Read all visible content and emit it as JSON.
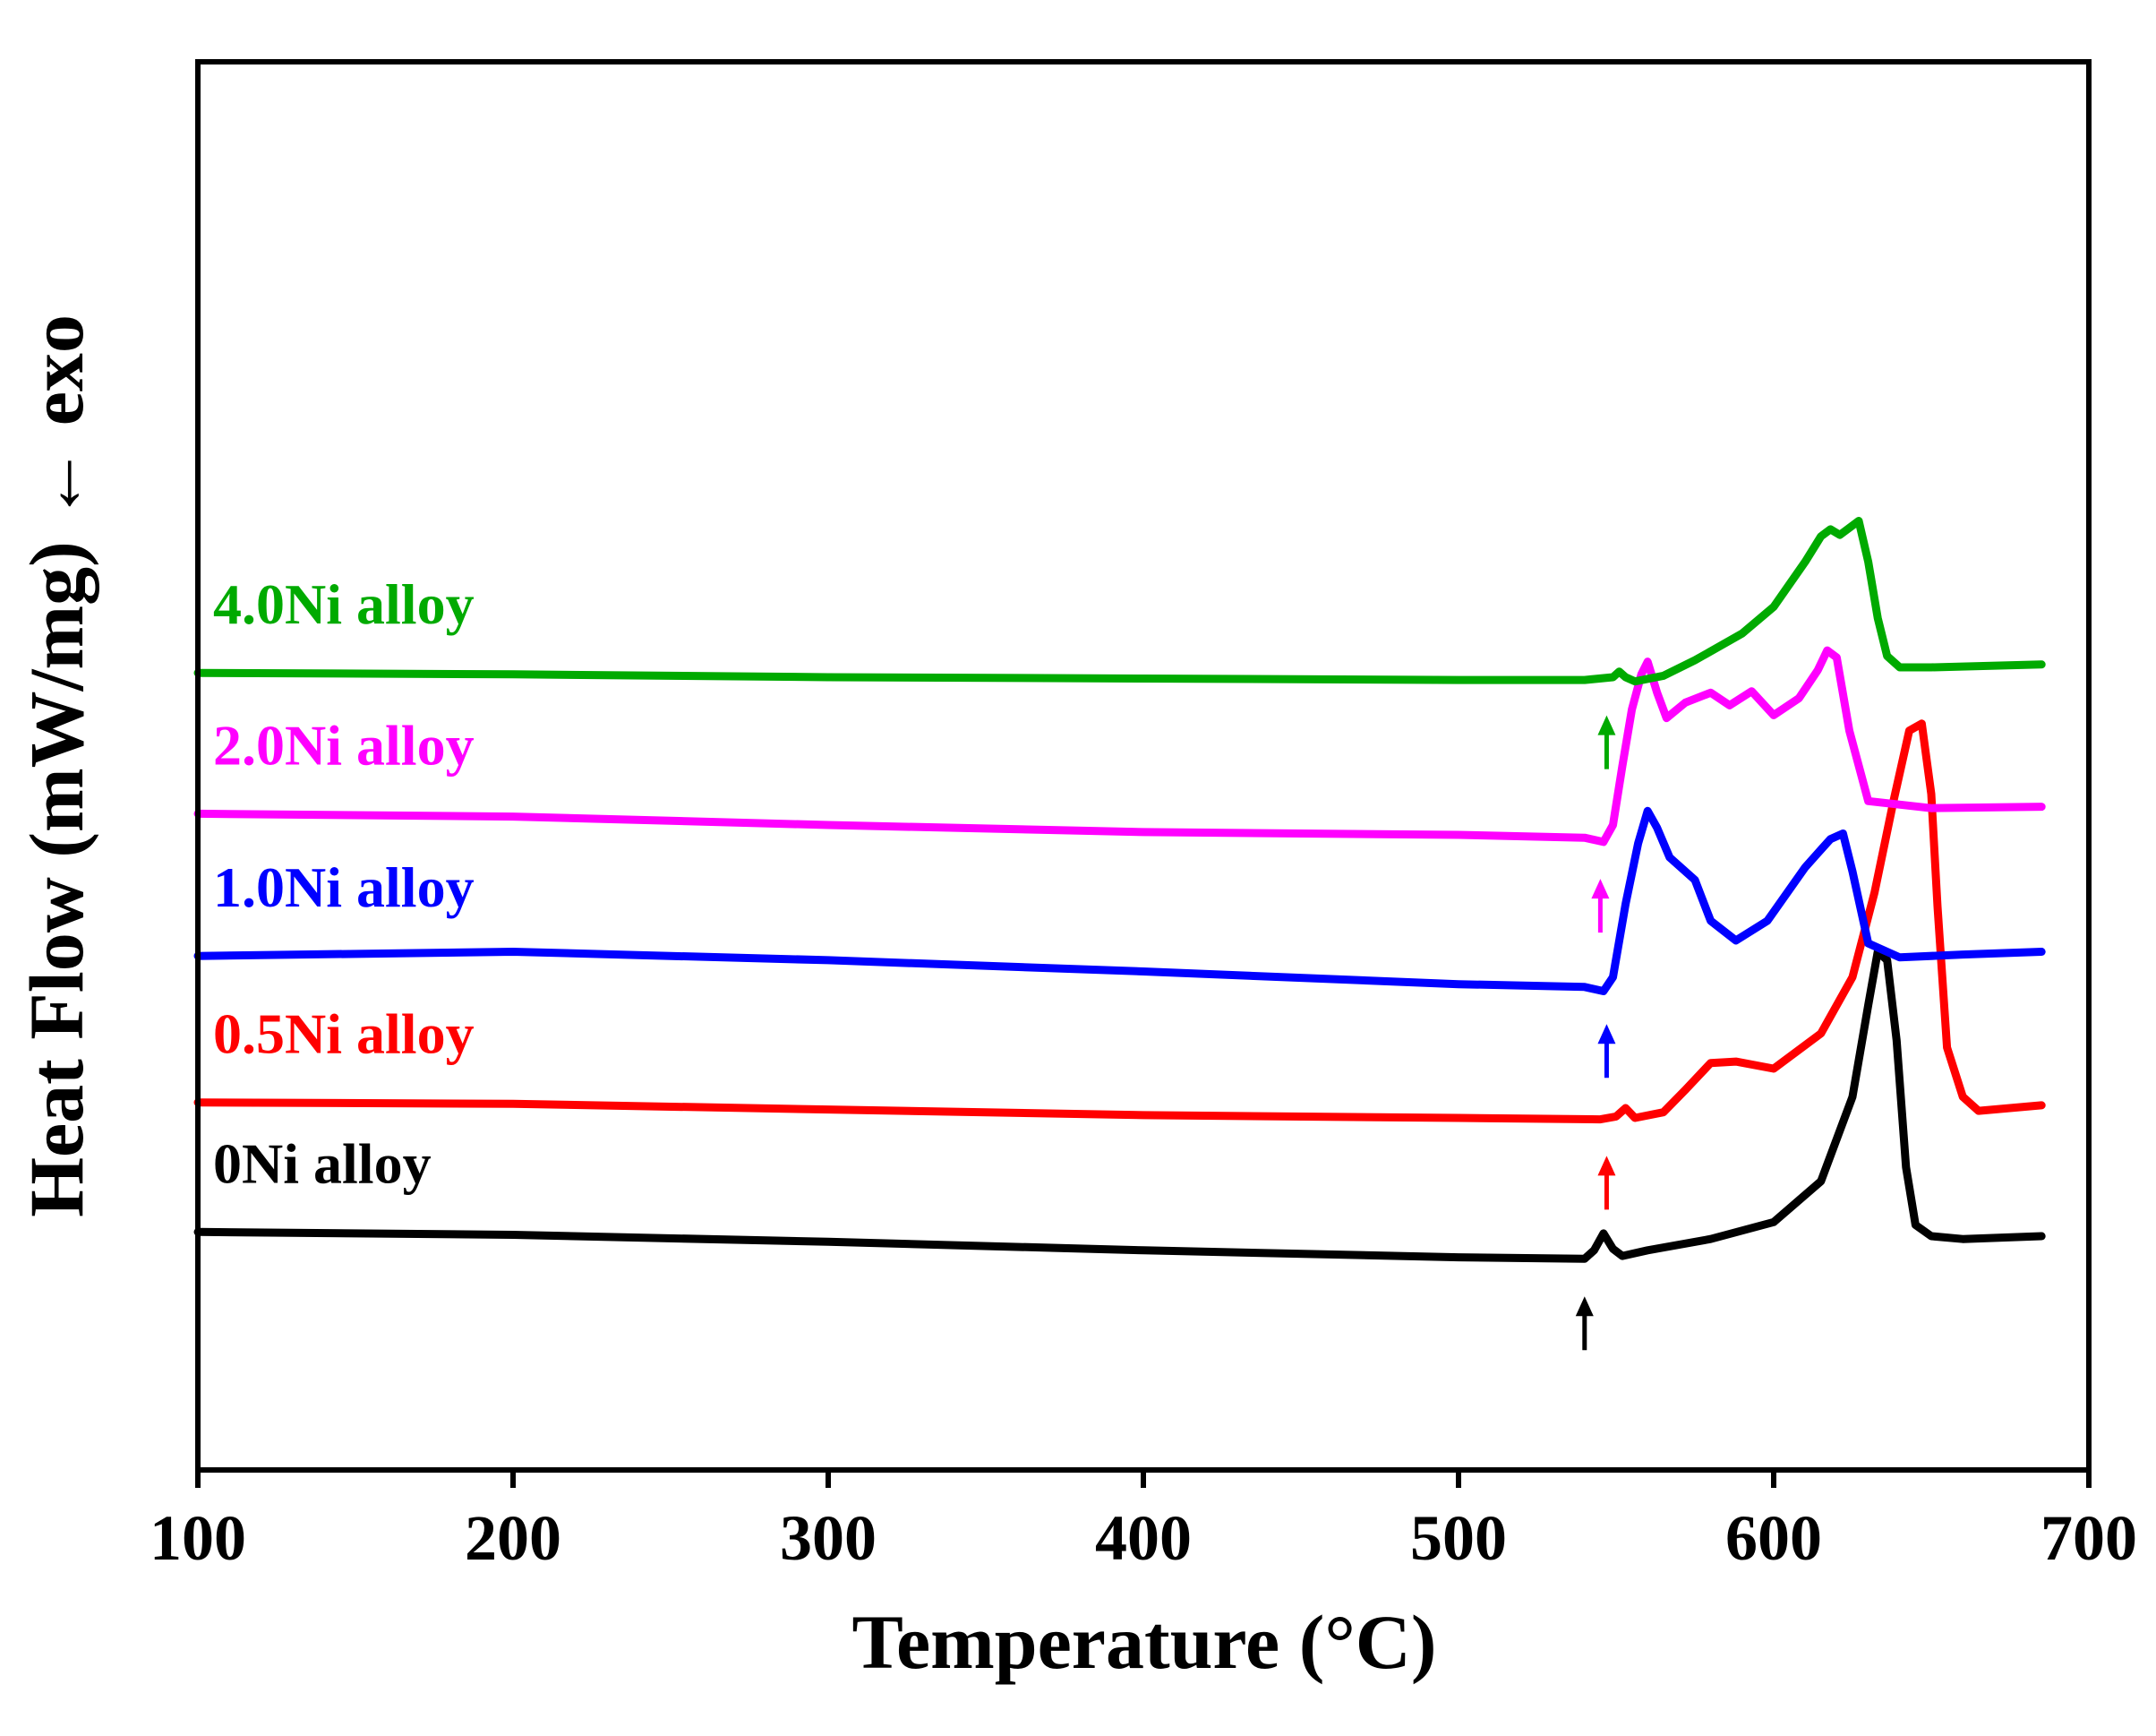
{
  "chart_data": {
    "type": "line",
    "title": "",
    "xlabel": "Temperature (°C)",
    "ylabel": "Heat Flow (mW/mg) ← exo",
    "xlim": [
      100,
      700
    ],
    "xticks": [
      "100",
      "200",
      "300",
      "400",
      "500",
      "600",
      "700"
    ],
    "ylim": [
      0,
      100
    ],
    "grid": false,
    "legend": "inline labels above each curve",
    "series": [
      {
        "name": "0Ni alloy",
        "color": "#000000",
        "onset_arrow_x": 540,
        "x": [
          100,
          200,
          300,
          400,
          500,
          540,
          543,
          546,
          549,
          552,
          560,
          580,
          600,
          615,
          625,
          630,
          633,
          636,
          639,
          642,
          645,
          650,
          660,
          685
        ],
        "y": [
          16.9,
          16.7,
          16.2,
          15.6,
          15.1,
          15.0,
          15.6,
          16.8,
          15.7,
          15.2,
          15.6,
          16.4,
          17.6,
          20.5,
          26.5,
          33,
          36.8,
          36.2,
          30.5,
          21.5,
          17.4,
          16.6,
          16.4,
          16.6
        ]
      },
      {
        "name": "0.5Ni alloy",
        "color": "#ff0000",
        "onset_arrow_x": 547,
        "x": [
          100,
          200,
          300,
          400,
          500,
          545,
          550,
          553,
          556,
          565,
          572,
          580,
          588,
          600,
          615,
          625,
          632,
          638,
          643,
          647,
          650,
          652,
          655,
          660,
          665,
          685
        ],
        "y": [
          26.1,
          26.0,
          25.6,
          25.2,
          25.0,
          24.9,
          25.1,
          25.7,
          25.0,
          25.4,
          27.0,
          28.9,
          29.0,
          28.5,
          31.0,
          35,
          41,
          47.5,
          52.5,
          53,
          48,
          40,
          30,
          26.5,
          25.5,
          25.9
        ]
      },
      {
        "name": "1.0Ni alloy",
        "color": "#0000ff",
        "onset_arrow_x": 547,
        "x": [
          100,
          200,
          300,
          400,
          500,
          540,
          546,
          549,
          553,
          557,
          560,
          563,
          567,
          575,
          580,
          588,
          598,
          610,
          618,
          622,
          625,
          630,
          640,
          660,
          685
        ],
        "y": [
          36.5,
          36.8,
          36.2,
          35.4,
          34.5,
          34.3,
          34.0,
          35.0,
          40.2,
          44.5,
          46.8,
          45.6,
          43.5,
          41.9,
          39.0,
          37.6,
          39.0,
          42.8,
          44.8,
          45.2,
          42.5,
          37.4,
          36.4,
          36.6,
          36.8
        ]
      },
      {
        "name": "2.0Ni alloy",
        "color": "#ff00ff",
        "onset_arrow_x": 545,
        "x": [
          100,
          200,
          300,
          400,
          500,
          540,
          546,
          549,
          552,
          555,
          558,
          560,
          563,
          566,
          572,
          580,
          586,
          593,
          600,
          608,
          614,
          617,
          620,
          624,
          630,
          650,
          685
        ],
        "y": [
          46.6,
          46.4,
          45.8,
          45.3,
          45.1,
          44.9,
          44.6,
          45.8,
          50.0,
          54.0,
          56.5,
          57.4,
          55.2,
          53.4,
          54.5,
          55.2,
          54.3,
          55.3,
          53.6,
          54.8,
          56.8,
          58.2,
          57.7,
          52.5,
          47.5,
          47.0,
          47.1
        ]
      },
      {
        "name": "4.0Ni alloy",
        "color": "#00aa00",
        "onset_arrow_x": 547,
        "x": [
          100,
          200,
          300,
          400,
          500,
          540,
          549,
          551,
          553,
          556,
          565,
          575,
          590,
          600,
          610,
          615,
          618,
          621,
          624,
          627,
          630,
          633,
          636,
          640,
          650,
          685
        ],
        "y": [
          56.6,
          56.5,
          56.3,
          56.2,
          56.1,
          56.1,
          56.3,
          56.7,
          56.3,
          56.0,
          56.4,
          57.5,
          59.4,
          61.3,
          64.5,
          66.3,
          66.8,
          66.4,
          66.9,
          67.4,
          64.5,
          60.5,
          57.8,
          57.0,
          57.0,
          57.2
        ]
      }
    ]
  }
}
